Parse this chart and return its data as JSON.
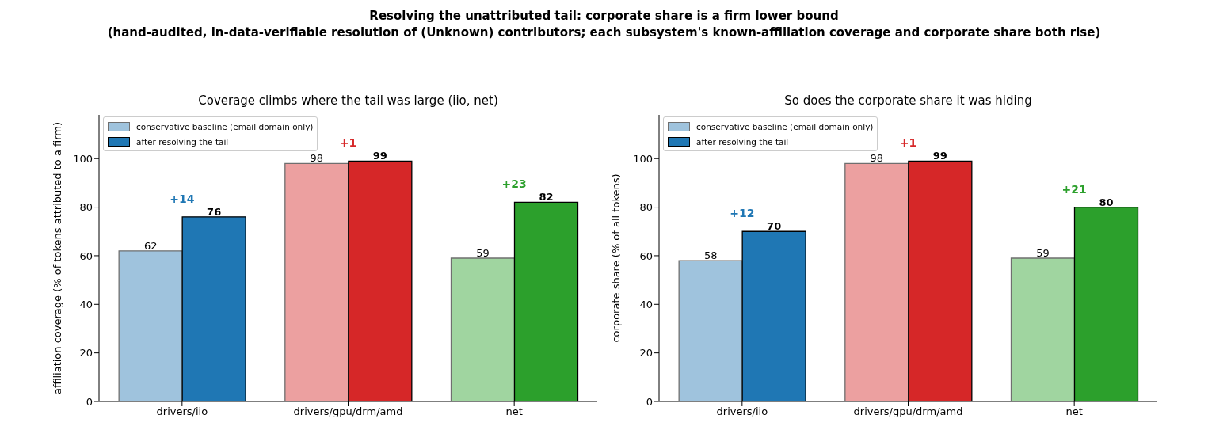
{
  "chart_data": [
    {
      "type": "bar",
      "title": "Coverage climbs where the tail was large (iio, net)",
      "ylabel": "affiliation coverage (% of tokens attributed to a firm)",
      "categories": [
        "drivers/iio",
        "drivers/gpu/drm/amd",
        "net"
      ],
      "series": [
        {
          "name": "conservative baseline (email domain only)",
          "colors": [
            "#9fc3dd",
            "#eca0a0",
            "#a0d5a0"
          ],
          "values": [
            62,
            98,
            59
          ]
        },
        {
          "name": "after resolving the tail",
          "colors": [
            "#1f77b4",
            "#d62728",
            "#2ca02c"
          ],
          "values": [
            76,
            99,
            82
          ]
        }
      ],
      "ylim": [
        0,
        118
      ],
      "yticks": [
        0,
        20,
        40,
        60,
        80,
        100
      ],
      "legend": "top left",
      "data_labels": true,
      "annotations": [
        "Resolving the unattributed tail: corporate share is a firm lower bound",
        "(hand-audited, in-data-verifiable resolution of (Unknown) contributors; each subsystem's known-affiliation coverage and corporate share both rise)",
        "+14",
        "+1",
        "+23"
      ]
    },
    {
      "type": "bar",
      "title": "So does the corporate share it was hiding",
      "ylabel": "corporate share (% of all tokens)",
      "categories": [
        "drivers/iio",
        "drivers/gpu/drm/amd",
        "net"
      ],
      "series": [
        {
          "name": "conservative baseline (email domain only)",
          "colors": [
            "#9fc3dd",
            "#eca0a0",
            "#a0d5a0"
          ],
          "values": [
            58,
            98,
            59
          ]
        },
        {
          "name": "after resolving the tail",
          "colors": [
            "#1f77b4",
            "#d62728",
            "#2ca02c"
          ],
          "values": [
            70,
            99,
            80
          ]
        }
      ],
      "ylim": [
        0,
        118
      ],
      "yticks": [
        0,
        20,
        40,
        60,
        80,
        100
      ],
      "legend": "top left",
      "data_labels": true,
      "annotations": [
        "+12",
        "+1",
        "+21"
      ]
    }
  ]
}
